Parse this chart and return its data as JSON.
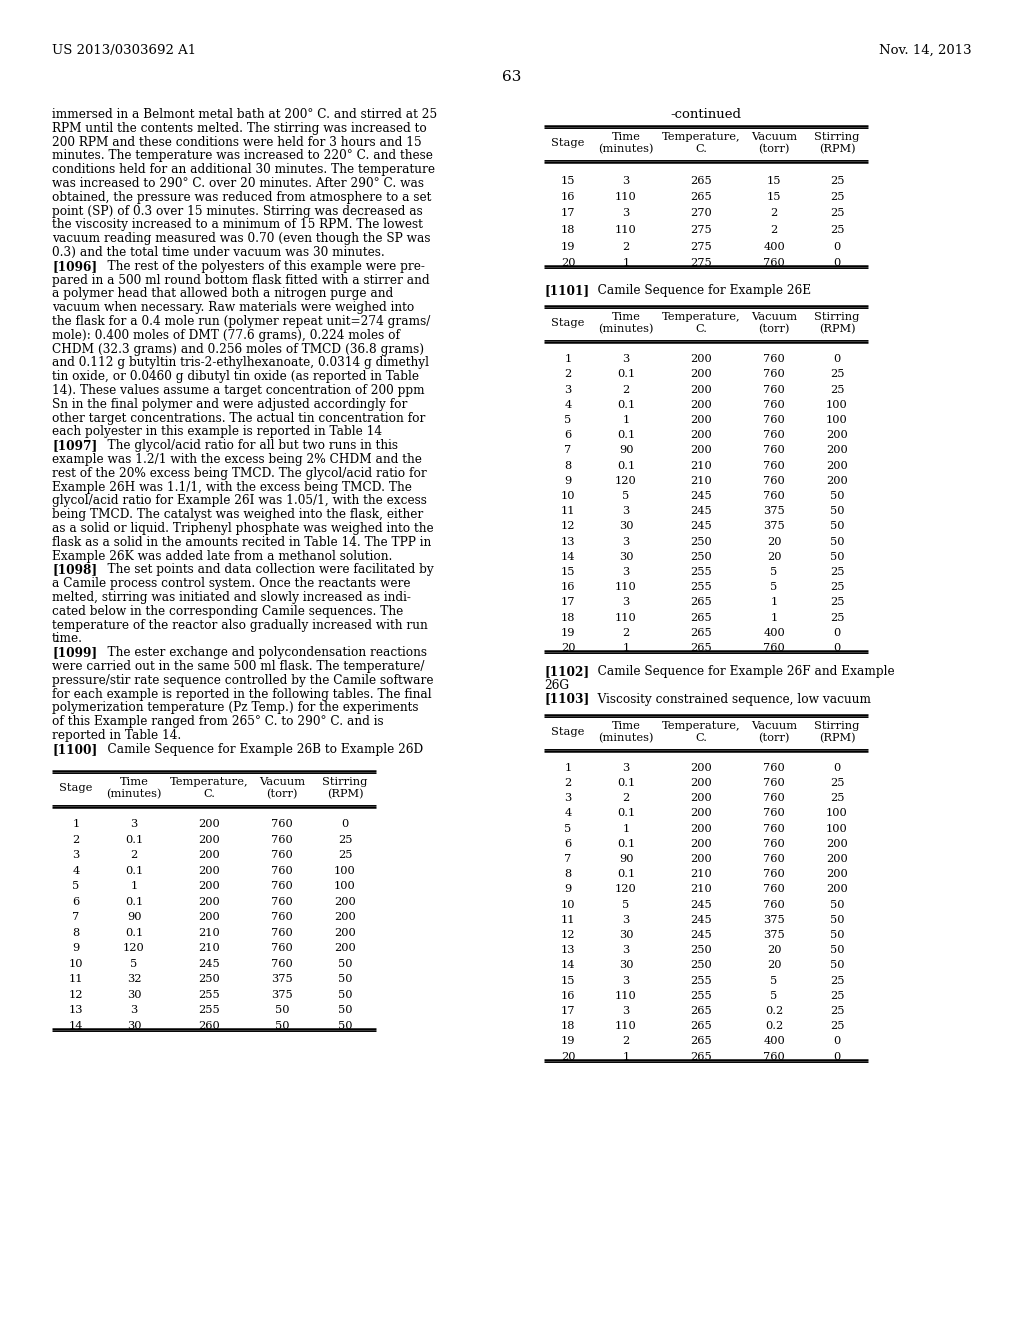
{
  "header_left": "US 2013/0303692 A1",
  "header_right": "Nov. 14, 2013",
  "page_number": "63",
  "left_body_lines": [
    "immersed in a Belmont metal bath at 200° C. and stirred at 25",
    "RPM until the contents melted. The stirring was increased to",
    "200 RPM and these conditions were held for 3 hours and 15",
    "minutes. The temperature was increased to 220° C. and these",
    "conditions held for an additional 30 minutes. The temperature",
    "was increased to 290° C. over 20 minutes. After 290° C. was",
    "obtained, the pressure was reduced from atmosphere to a set",
    "point (SP) of 0.3 over 15 minutes. Stirring was decreased as",
    "the viscosity increased to a minimum of 15 RPM. The lowest",
    "vacuum reading measured was 0.70 (even though the SP was",
    "0.3) and the total time under vacuum was 30 minutes."
  ],
  "para1096": {
    "tag": "[1096]",
    "lines": [
      "The rest of the polyesters of this example were pre-",
      "pared in a 500 ml round bottom flask fitted with a stirrer and",
      "a polymer head that allowed both a nitrogen purge and",
      "vacuum when necessary. Raw materials were weighed into",
      "the flask for a 0.4 mole run (polymer repeat unit=274 grams/",
      "mole): 0.400 moles of DMT (77.6 grams), 0.224 moles of",
      "CHDM (32.3 grams) and 0.256 moles of TMCD (36.8 grams)",
      "and 0.112 g butyltin tris-2-ethylhexanoate, 0.0314 g dimethyl",
      "tin oxide, or 0.0460 g dibutyl tin oxide (as reported in Table",
      "14). These values assume a target concentration of 200 ppm",
      "Sn in the final polymer and were adjusted accordingly for",
      "other target concentrations. The actual tin concentration for",
      "each polyester in this example is reported in Table 14"
    ]
  },
  "para1097": {
    "tag": "[1097]",
    "lines": [
      "The glycol/acid ratio for all but two runs in this",
      "example was 1.2/1 with the excess being 2% CHDM and the",
      "rest of the 20% excess being TMCD. The glycol/acid ratio for",
      "Example 26H was 1.1/1, with the excess being TMCD. The",
      "glycol/acid ratio for Example 26I was 1.05/1, with the excess",
      "being TMCD. The catalyst was weighed into the flask, either",
      "as a solid or liquid. Triphenyl phosphate was weighed into the",
      "flask as a solid in the amounts recited in Table 14. The TPP in",
      "Example 26K was added late from a methanol solution."
    ]
  },
  "para1098": {
    "tag": "[1098]",
    "lines": [
      "The set points and data collection were facilitated by",
      "a Camile process control system. Once the reactants were",
      "melted, stirring was initiated and slowly increased as indi-",
      "cated below in the corresponding Camile sequences. The",
      "temperature of the reactor also gradually increased with run",
      "time."
    ]
  },
  "para1099": {
    "tag": "[1099]",
    "lines": [
      "The ester exchange and polycondensation reactions",
      "were carried out in the same 500 ml flask. The temperature/",
      "pressure/stir rate sequence controlled by the Camile software",
      "for each example is reported in the following tables. The final",
      "polymerization temperature (Pz Temp.) for the experiments",
      "of this Example ranged from 265° C. to 290° C. and is",
      "reported in Table 14."
    ]
  },
  "para1100": {
    "tag": "[1100]",
    "text": "Camile Sequence for Example 26B to Example 26D"
  },
  "table_continued_label": "-continued",
  "table_header": [
    "Stage",
    "Time\n(minutes)",
    "Temperature,\nC.",
    "Vacuum\n(torr)",
    "Stirring\n(RPM)"
  ],
  "table1_data": [
    [
      "15",
      "3",
      "265",
      "15",
      "25"
    ],
    [
      "16",
      "110",
      "265",
      "15",
      "25"
    ],
    [
      "17",
      "3",
      "270",
      "2",
      "25"
    ],
    [
      "18",
      "110",
      "275",
      "2",
      "25"
    ],
    [
      "19",
      "2",
      "275",
      "400",
      "0"
    ],
    [
      "20",
      "1",
      "275",
      "760",
      "0"
    ]
  ],
  "para1101_tag": "[1101]",
  "para1101_text": "Camile Sequence for Example 26E",
  "table2_data": [
    [
      "1",
      "3",
      "200",
      "760",
      "0"
    ],
    [
      "2",
      "0.1",
      "200",
      "760",
      "25"
    ],
    [
      "3",
      "2",
      "200",
      "760",
      "25"
    ],
    [
      "4",
      "0.1",
      "200",
      "760",
      "100"
    ],
    [
      "5",
      "1",
      "200",
      "760",
      "100"
    ],
    [
      "6",
      "0.1",
      "200",
      "760",
      "200"
    ],
    [
      "7",
      "90",
      "200",
      "760",
      "200"
    ],
    [
      "8",
      "0.1",
      "210",
      "760",
      "200"
    ],
    [
      "9",
      "120",
      "210",
      "760",
      "200"
    ],
    [
      "10",
      "5",
      "245",
      "760",
      "50"
    ],
    [
      "11",
      "3",
      "245",
      "375",
      "50"
    ],
    [
      "12",
      "30",
      "245",
      "375",
      "50"
    ],
    [
      "13",
      "3",
      "250",
      "20",
      "50"
    ],
    [
      "14",
      "30",
      "250",
      "20",
      "50"
    ],
    [
      "15",
      "3",
      "255",
      "5",
      "25"
    ],
    [
      "16",
      "110",
      "255",
      "5",
      "25"
    ],
    [
      "17",
      "3",
      "265",
      "1",
      "25"
    ],
    [
      "18",
      "110",
      "265",
      "1",
      "25"
    ],
    [
      "19",
      "2",
      "265",
      "400",
      "0"
    ],
    [
      "20",
      "1",
      "265",
      "760",
      "0"
    ]
  ],
  "para1102_tag": "[1102]",
  "para1102_text1": "Camile Sequence for Example 26F and Example",
  "para1102_text2": "26G",
  "para1103_tag": "[1103]",
  "para1103_text": "Viscosity constrained sequence, low vacuum",
  "table3_data": [
    [
      "1",
      "3",
      "200",
      "760",
      "0"
    ],
    [
      "2",
      "0.1",
      "200",
      "760",
      "25"
    ],
    [
      "3",
      "2",
      "200",
      "760",
      "25"
    ],
    [
      "4",
      "0.1",
      "200",
      "760",
      "100"
    ],
    [
      "5",
      "1",
      "200",
      "760",
      "100"
    ],
    [
      "6",
      "0.1",
      "200",
      "760",
      "200"
    ],
    [
      "7",
      "90",
      "200",
      "760",
      "200"
    ],
    [
      "8",
      "0.1",
      "210",
      "760",
      "200"
    ],
    [
      "9",
      "120",
      "210",
      "760",
      "200"
    ],
    [
      "10",
      "5",
      "245",
      "760",
      "50"
    ],
    [
      "11",
      "3",
      "245",
      "375",
      "50"
    ],
    [
      "12",
      "30",
      "245",
      "375",
      "50"
    ],
    [
      "13",
      "3",
      "250",
      "20",
      "50"
    ],
    [
      "14",
      "30",
      "250",
      "20",
      "50"
    ],
    [
      "15",
      "3",
      "255",
      "5",
      "25"
    ],
    [
      "16",
      "110",
      "255",
      "5",
      "25"
    ],
    [
      "17",
      "3",
      "265",
      "0.2",
      "25"
    ],
    [
      "18",
      "110",
      "265",
      "0.2",
      "25"
    ],
    [
      "19",
      "2",
      "265",
      "400",
      "0"
    ],
    [
      "20",
      "1",
      "265",
      "760",
      "0"
    ]
  ],
  "left_table_data": [
    [
      "1",
      "3",
      "200",
      "760",
      "0"
    ],
    [
      "2",
      "0.1",
      "200",
      "760",
      "25"
    ],
    [
      "3",
      "2",
      "200",
      "760",
      "25"
    ],
    [
      "4",
      "0.1",
      "200",
      "760",
      "100"
    ],
    [
      "5",
      "1",
      "200",
      "760",
      "100"
    ],
    [
      "6",
      "0.1",
      "200",
      "760",
      "200"
    ],
    [
      "7",
      "90",
      "200",
      "760",
      "200"
    ],
    [
      "8",
      "0.1",
      "210",
      "760",
      "200"
    ],
    [
      "9",
      "120",
      "210",
      "760",
      "200"
    ],
    [
      "10",
      "5",
      "245",
      "760",
      "50"
    ],
    [
      "11",
      "32",
      "250",
      "375",
      "50"
    ],
    [
      "12",
      "30",
      "255",
      "375",
      "50"
    ],
    [
      "13",
      "3",
      "255",
      "50",
      "50"
    ],
    [
      "14",
      "30",
      "260",
      "50",
      "50"
    ]
  ]
}
